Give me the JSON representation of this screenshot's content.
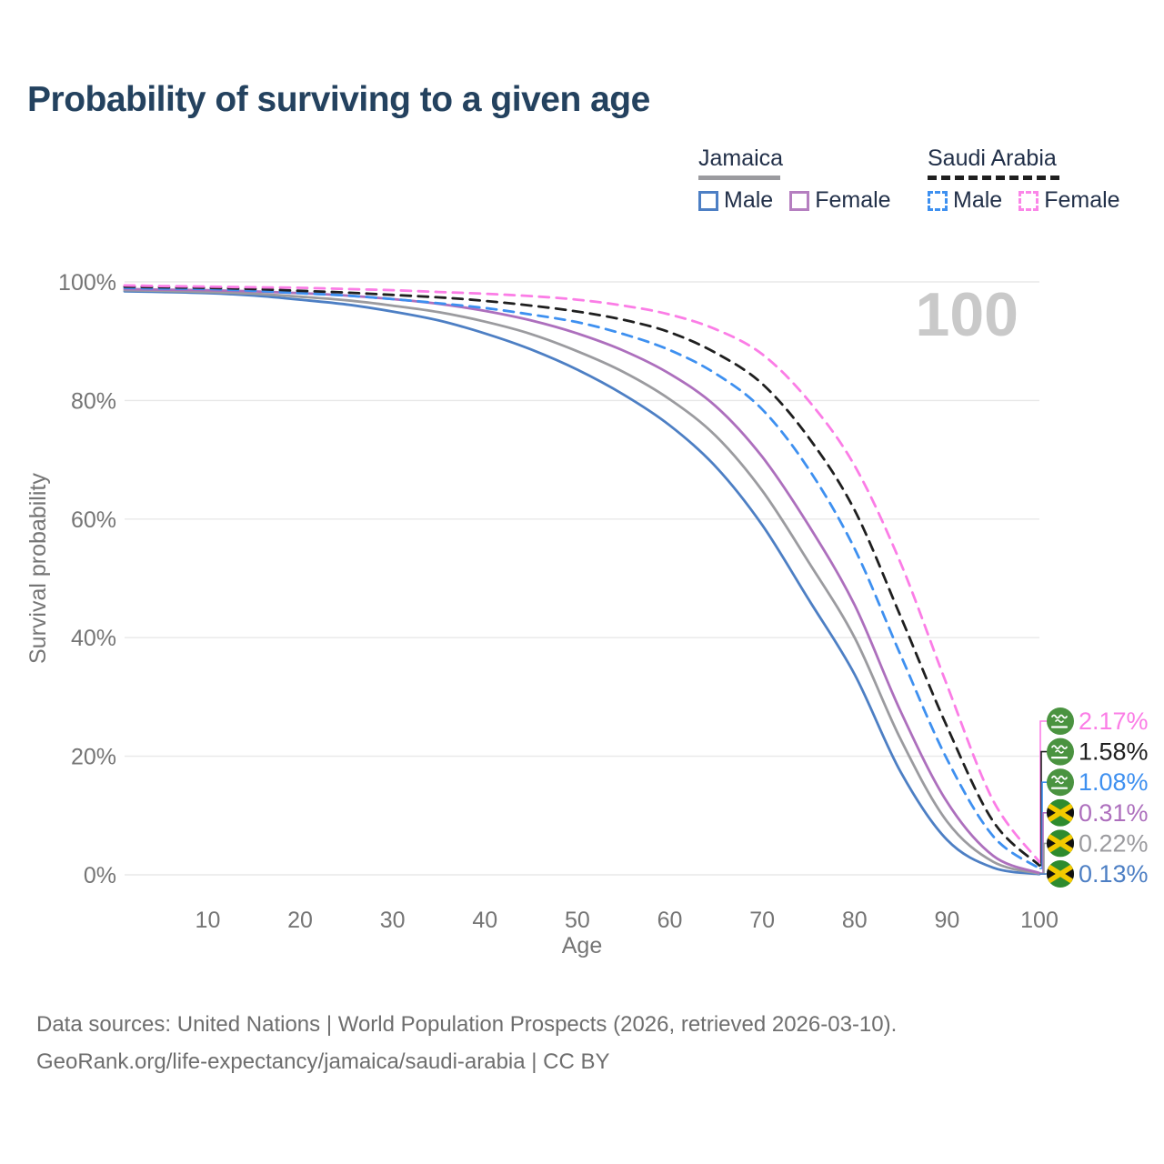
{
  "title": "Probability of surviving to a given age",
  "watermark": "100",
  "legend": {
    "groups": [
      {
        "name": "Jamaica",
        "line_style": "solid",
        "line_color": "#9b9b9f",
        "items": [
          {
            "label": "Male",
            "color": "#4d7fc4",
            "dashed": false
          },
          {
            "label": "Female",
            "color": "#b57fc0",
            "dashed": false
          }
        ]
      },
      {
        "name": "Saudi Arabia",
        "line_style": "dashed",
        "line_color": "#1f1f1f",
        "items": [
          {
            "label": "Male",
            "color": "#3e90f0",
            "dashed": true
          },
          {
            "label": "Female",
            "color": "#fb86e8",
            "dashed": true
          }
        ]
      }
    ]
  },
  "axes": {
    "y": {
      "title": "Survival probability",
      "ticks": [
        "0%",
        "20%",
        "40%",
        "60%",
        "80%",
        "100%"
      ],
      "tick_values": [
        0,
        20,
        40,
        60,
        80,
        100
      ]
    },
    "x": {
      "title": "Age",
      "ticks": [
        "10",
        "20",
        "30",
        "40",
        "50",
        "60",
        "70",
        "80",
        "90",
        "100"
      ],
      "tick_values": [
        10,
        20,
        30,
        40,
        50,
        60,
        70,
        80,
        90,
        100
      ]
    }
  },
  "end_labels": [
    {
      "value": "2.17%",
      "color": "#fb7de6",
      "flag": "saudi-arabia",
      "series": "Saudi Arabia Female"
    },
    {
      "value": "1.58%",
      "color": "#1f1f1f",
      "flag": "saudi-arabia",
      "series": "Saudi Arabia Total"
    },
    {
      "value": "1.08%",
      "color": "#3e90f0",
      "flag": "saudi-arabia",
      "series": "Saudi Arabia Male"
    },
    {
      "value": "0.31%",
      "color": "#ad6fbd",
      "flag": "jamaica",
      "series": "Jamaica Female"
    },
    {
      "value": "0.22%",
      "color": "#9b9b9f",
      "flag": "jamaica",
      "series": "Jamaica Total"
    },
    {
      "value": "0.13%",
      "color": "#4d7fc4",
      "flag": "jamaica",
      "series": "Jamaica Male"
    }
  ],
  "footer": {
    "line1": "Data sources: United Nations | World Population Prospects (2026, retrieved 2026-03-10).",
    "line2": "GeoRank.org/life-expectancy/jamaica/saudi-arabia | CC BY"
  },
  "chart_data": {
    "type": "line",
    "title": "Probability of surviving to a given age",
    "xlabel": "Age",
    "ylabel": "Survival probability",
    "xlim": [
      1,
      100
    ],
    "ylim": [
      0,
      100
    ],
    "grid": "horizontal",
    "legend_position": "top-right",
    "x": [
      1,
      5,
      10,
      15,
      20,
      25,
      30,
      35,
      40,
      45,
      50,
      55,
      60,
      65,
      70,
      75,
      80,
      85,
      90,
      95,
      100
    ],
    "series": [
      {
        "name": "Jamaica Male",
        "country": "Jamaica",
        "sex": "Male",
        "color": "#4d7fc4",
        "dashed": false,
        "values": [
          98.4,
          98.3,
          98.1,
          97.7,
          97.0,
          96.2,
          95.0,
          93.5,
          91.3,
          88.6,
          85.2,
          81.0,
          75.8,
          68.8,
          59.0,
          46.5,
          33.8,
          17.3,
          5.9,
          1.2,
          0.13
        ]
      },
      {
        "name": "Jamaica Total",
        "country": "Jamaica",
        "sex": "Both",
        "color": "#9b9b9f",
        "dashed": false,
        "values": [
          98.6,
          98.5,
          98.3,
          98.0,
          97.5,
          96.9,
          96.0,
          94.9,
          93.3,
          91.2,
          88.3,
          84.8,
          80.2,
          74.0,
          64.8,
          52.8,
          40.0,
          22.8,
          9.0,
          2.2,
          0.22
        ]
      },
      {
        "name": "Jamaica Female",
        "country": "Jamaica",
        "sex": "Female",
        "color": "#ad6fbd",
        "dashed": false,
        "values": [
          98.8,
          98.7,
          98.6,
          98.4,
          98.1,
          97.7,
          97.1,
          96.3,
          95.1,
          93.5,
          91.3,
          88.4,
          84.5,
          79.0,
          70.5,
          59.0,
          45.5,
          27.5,
          12.3,
          3.2,
          0.31
        ]
      },
      {
        "name": "Saudi Arabia Male",
        "country": "Saudi Arabia",
        "sex": "Male",
        "color": "#3e90f0",
        "dashed": true,
        "values": [
          99.0,
          98.9,
          98.8,
          98.5,
          98.1,
          97.7,
          97.1,
          96.4,
          95.6,
          94.5,
          93.2,
          91.2,
          88.5,
          84.5,
          78.5,
          68.5,
          55.0,
          37.0,
          19.5,
          6.5,
          1.08
        ]
      },
      {
        "name": "Saudi Arabia Total",
        "country": "Saudi Arabia",
        "sex": "Both",
        "color": "#1f1f1f",
        "dashed": true,
        "values": [
          99.2,
          99.1,
          99.0,
          98.8,
          98.5,
          98.2,
          97.8,
          97.4,
          96.8,
          96.0,
          95.0,
          93.6,
          91.5,
          88.0,
          82.8,
          73.8,
          61.5,
          43.5,
          25.0,
          9.0,
          1.58
        ]
      },
      {
        "name": "Saudi Arabia Female",
        "country": "Saudi Arabia",
        "sex": "Female",
        "color": "#fb7de6",
        "dashed": true,
        "values": [
          99.4,
          99.3,
          99.2,
          99.1,
          99.0,
          98.8,
          98.6,
          98.3,
          98.0,
          97.6,
          97.0,
          96.0,
          94.5,
          92.0,
          87.8,
          80.0,
          69.0,
          52.5,
          32.0,
          12.5,
          2.17
        ]
      }
    ]
  }
}
